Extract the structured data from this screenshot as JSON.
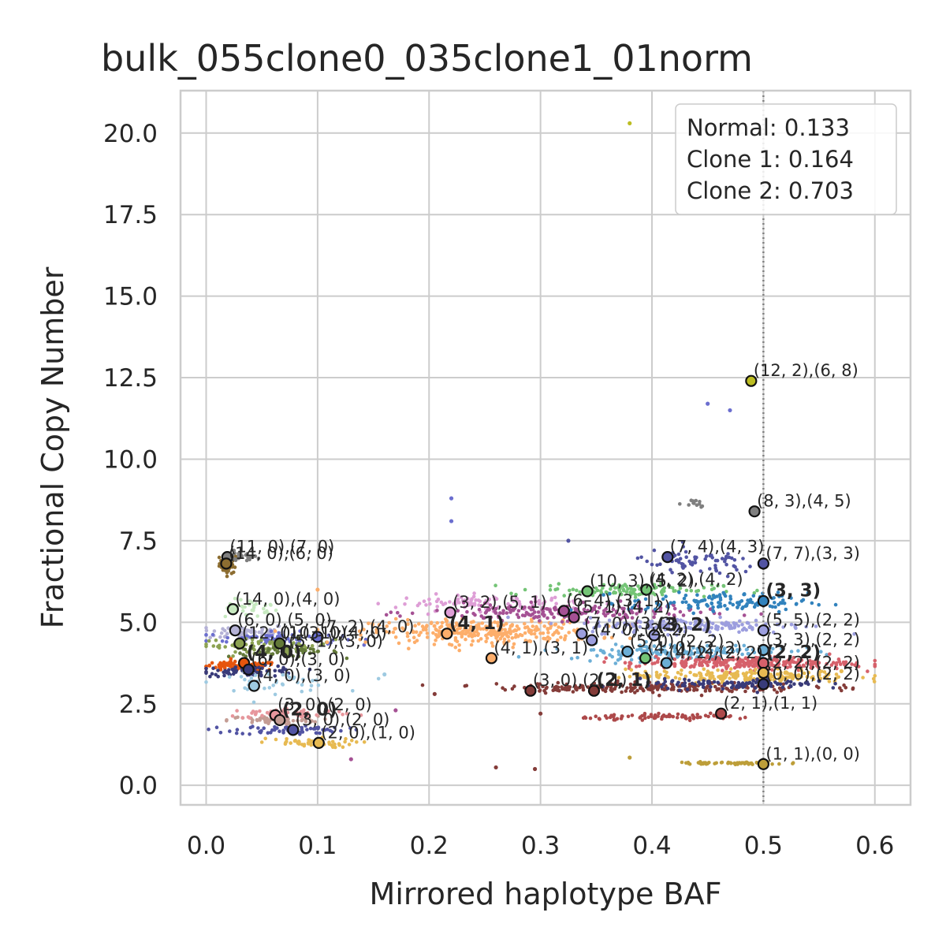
{
  "chart_data": {
    "type": "scatter",
    "title": "bulk_055clone0_035clone1_01norm",
    "xlabel": "Mirrored haplotype BAF",
    "ylabel": "Fractional Copy Number",
    "xlim": [
      -0.023,
      0.632
    ],
    "ylim": [
      -0.6,
      21.3
    ],
    "xticks": [
      0.0,
      0.1,
      0.2,
      0.3,
      0.4,
      0.5,
      0.6
    ],
    "xtick_labels": [
      "0.0",
      "0.1",
      "0.2",
      "0.3",
      "0.4",
      "0.5",
      "0.6"
    ],
    "yticks": [
      0.0,
      2.5,
      5.0,
      7.5,
      10.0,
      12.5,
      15.0,
      17.5,
      20.0
    ],
    "ytick_labels": [
      "0.0",
      "2.5",
      "5.0",
      "7.5",
      "10.0",
      "12.5",
      "15.0",
      "17.5",
      "20.0"
    ],
    "grid": true,
    "vline": {
      "x": 0.5,
      "style": "dotted",
      "color": "#808080"
    },
    "legend": {
      "placement": "top-right",
      "lines": [
        "Normal: 0.133",
        "Clone 1: 0.164",
        "Clone 2: 0.703"
      ]
    },
    "clusters": [
      {
        "color": "#8c6d31",
        "cx": 0.02,
        "cy": 6.8,
        "sx": 0.004,
        "sy": 0.15,
        "n": 60
      },
      {
        "color": "#7f7f7f",
        "cx": 0.03,
        "cy": 7.0,
        "sx": 0.008,
        "sy": 0.08,
        "n": 25
      },
      {
        "color": "#c7e9c0",
        "cx": 0.04,
        "cy": 5.4,
        "sx": 0.012,
        "sy": 0.15,
        "n": 30
      },
      {
        "color": "#b5b2d6",
        "cx": 0.035,
        "cy": 4.7,
        "sx": 0.02,
        "sy": 0.12,
        "n": 60
      },
      {
        "color": "#6b6ecf",
        "cx": 0.06,
        "cy": 4.5,
        "sx": 0.03,
        "sy": 0.1,
        "n": 60
      },
      {
        "color": "#8ca252",
        "cx": 0.055,
        "cy": 4.3,
        "sx": 0.03,
        "sy": 0.1,
        "n": 70
      },
      {
        "color": "#637939",
        "cx": 0.07,
        "cy": 4.1,
        "sx": 0.025,
        "sy": 0.08,
        "n": 50
      },
      {
        "color": "#e6550d",
        "cx": 0.03,
        "cy": 3.65,
        "sx": 0.018,
        "sy": 0.07,
        "n": 90
      },
      {
        "color": "#393b79",
        "cx": 0.04,
        "cy": 3.5,
        "sx": 0.022,
        "sy": 0.08,
        "n": 70
      },
      {
        "color": "#9ecae1",
        "cx": 0.06,
        "cy": 3.15,
        "sx": 0.03,
        "sy": 0.15,
        "n": 40
      },
      {
        "color": "#c49c94",
        "cx": 0.06,
        "cy": 2.0,
        "sx": 0.02,
        "sy": 0.06,
        "n": 60
      },
      {
        "color": "#e7969c",
        "cx": 0.075,
        "cy": 2.2,
        "sx": 0.03,
        "sy": 0.08,
        "n": 60
      },
      {
        "color": "#5254a3",
        "cx": 0.075,
        "cy": 1.7,
        "sx": 0.025,
        "sy": 0.07,
        "n": 70
      },
      {
        "color": "#e7ba52",
        "cx": 0.09,
        "cy": 1.3,
        "sx": 0.022,
        "sy": 0.07,
        "n": 50
      },
      {
        "color": "#fdae6b",
        "cx": 0.25,
        "cy": 4.7,
        "sx": 0.05,
        "sy": 0.18,
        "n": 320
      },
      {
        "color": "#de9ed6",
        "cx": 0.25,
        "cy": 5.6,
        "sx": 0.04,
        "sy": 0.12,
        "n": 90
      },
      {
        "color": "#a55194",
        "cx": 0.32,
        "cy": 5.3,
        "sx": 0.06,
        "sy": 0.12,
        "n": 200
      },
      {
        "color": "#74c476",
        "cx": 0.38,
        "cy": 6.0,
        "sx": 0.04,
        "sy": 0.1,
        "n": 120
      },
      {
        "color": "#3182bd",
        "cx": 0.46,
        "cy": 5.6,
        "sx": 0.04,
        "sy": 0.15,
        "n": 130
      },
      {
        "color": "#9c9ede",
        "cx": 0.44,
        "cy": 4.9,
        "sx": 0.05,
        "sy": 0.12,
        "n": 160
      },
      {
        "color": "#6baed6",
        "cx": 0.42,
        "cy": 4.1,
        "sx": 0.05,
        "sy": 0.12,
        "n": 170
      },
      {
        "color": "#d6616b",
        "cx": 0.48,
        "cy": 3.75,
        "sx": 0.05,
        "sy": 0.1,
        "n": 260
      },
      {
        "color": "#e7ba52",
        "cx": 0.48,
        "cy": 3.35,
        "sx": 0.05,
        "sy": 0.1,
        "n": 200
      },
      {
        "color": "#843c39",
        "cx": 0.4,
        "cy": 3.0,
        "sx": 0.07,
        "sy": 0.08,
        "n": 220
      },
      {
        "color": "#393b79",
        "cx": 0.47,
        "cy": 3.1,
        "sx": 0.04,
        "sy": 0.08,
        "n": 100
      },
      {
        "color": "#ad494a",
        "cx": 0.42,
        "cy": 2.1,
        "sx": 0.04,
        "sy": 0.04,
        "n": 80
      },
      {
        "color": "#5254a3",
        "cx": 0.44,
        "cy": 6.8,
        "sx": 0.03,
        "sy": 0.2,
        "n": 70
      },
      {
        "color": "#bd9e39",
        "cx": 0.47,
        "cy": 0.68,
        "sx": 0.025,
        "sy": 0.02,
        "n": 60
      },
      {
        "color": "#7f7f7f",
        "cx": 0.44,
        "cy": 8.65,
        "sx": 0.006,
        "sy": 0.08,
        "n": 12
      }
    ],
    "sparse_points": [
      {
        "x": 0.38,
        "y": 20.3,
        "color": "#bcbd22"
      },
      {
        "x": 0.22,
        "y": 8.8,
        "color": "#6b6ecf"
      },
      {
        "x": 0.22,
        "y": 8.1,
        "color": "#6b6ecf"
      },
      {
        "x": 0.45,
        "y": 11.7,
        "color": "#6b6ecf"
      },
      {
        "x": 0.47,
        "y": 11.5,
        "color": "#6b6ecf"
      },
      {
        "x": 0.325,
        "y": 7.5,
        "color": "#5254a3"
      },
      {
        "x": 0.1,
        "y": 6.0,
        "color": "#fdae6b"
      },
      {
        "x": 0.13,
        "y": 0.8,
        "color": "#a55194"
      },
      {
        "x": 0.26,
        "y": 0.55,
        "color": "#843c39"
      },
      {
        "x": 0.295,
        "y": 0.5,
        "color": "#843c39"
      },
      {
        "x": 0.38,
        "y": 0.85,
        "color": "#bd9e39"
      },
      {
        "x": 0.16,
        "y": 3.4,
        "color": "#9ecae1"
      },
      {
        "x": 0.205,
        "y": 2.8,
        "color": "#843c39"
      },
      {
        "x": 0.55,
        "y": 3.2,
        "color": "#393b79"
      },
      {
        "x": 0.57,
        "y": 3.5,
        "color": "#e7ba52"
      },
      {
        "x": 0.17,
        "y": 2.3,
        "color": "#a55194"
      },
      {
        "x": 0.3,
        "y": 2.2,
        "color": "#843c39"
      }
    ],
    "annotations": [
      {
        "x": 0.019,
        "y": 7.0,
        "text": "(11, 0),(7, 0)",
        "color": "#7f7f7f",
        "bold": false
      },
      {
        "x": 0.018,
        "y": 6.8,
        "text": "(14, 0),(6, 0)",
        "color": "#8c6d31",
        "bold": false
      },
      {
        "x": 0.024,
        "y": 5.4,
        "text": "(14, 0),(4, 0)",
        "color": "#c7e9c0",
        "bold": false
      },
      {
        "x": 0.026,
        "y": 4.75,
        "text": "(6, 0),(5, 0)",
        "color": "#b5b2d6",
        "bold": false
      },
      {
        "x": 0.1,
        "y": 4.55,
        "text": "(7, 2),(4, 0)",
        "color": "#6b6ecf",
        "bold": false
      },
      {
        "x": 0.03,
        "y": 4.35,
        "text": "(12, 0),(3, 0)",
        "color": "#8ca252",
        "bold": false
      },
      {
        "x": 0.066,
        "y": 4.35,
        "text": "(10, 1),(4, 0)",
        "color": "#637939",
        "bold": false
      },
      {
        "x": 0.072,
        "y": 4.1,
        "text": "(5, 1),(3, 0)",
        "color": "#8ca252",
        "bold": false
      },
      {
        "x": 0.034,
        "y": 3.75,
        "text": "(4, 0)",
        "color": "#e6550d",
        "bold": true
      },
      {
        "x": 0.038,
        "y": 3.55,
        "text": "(6, 0),(3, 0)",
        "color": "#393b79",
        "bold": false
      },
      {
        "x": 0.043,
        "y": 3.05,
        "text": "(4, 0),(3, 0)",
        "color": "#9ecae1",
        "bold": false
      },
      {
        "x": 0.062,
        "y": 2.15,
        "text": "(3, 0),(2, 0)",
        "color": "#e7969c",
        "bold": false
      },
      {
        "x": 0.066,
        "y": 2.0,
        "text": "(2, 0)",
        "color": "#c49c94",
        "bold": true
      },
      {
        "x": 0.078,
        "y": 1.7,
        "text": "(3, 0),(2, 0)",
        "color": "#5254a3",
        "bold": false
      },
      {
        "x": 0.101,
        "y": 1.3,
        "text": "(2, 0),(1, 0)",
        "color": "#e7ba52",
        "bold": false
      },
      {
        "x": 0.219,
        "y": 5.3,
        "text": "(3, 2),(5, 1)",
        "color": "#de9ed6",
        "bold": false
      },
      {
        "x": 0.216,
        "y": 4.65,
        "text": "(4, 1)",
        "color": "#fdae6b",
        "bold": true
      },
      {
        "x": 0.256,
        "y": 3.9,
        "text": "(4, 1),(3, 1)",
        "color": "#fdae6b",
        "bold": false
      },
      {
        "x": 0.291,
        "y": 2.9,
        "text": "(3, 0),(2, 1)",
        "color": "#843c39",
        "bold": false
      },
      {
        "x": 0.348,
        "y": 2.9,
        "text": "(2, 1)",
        "color": "#843c39",
        "bold": true
      },
      {
        "x": 0.321,
        "y": 5.35,
        "text": "(6, 4),(3, 1)",
        "color": "#a55194",
        "bold": false
      },
      {
        "x": 0.33,
        "y": 5.15,
        "text": "(5, 1),(4, 2)",
        "color": "#a55194",
        "bold": false
      },
      {
        "x": 0.342,
        "y": 5.95,
        "text": "(10, 3),(5, 2)",
        "color": "#74c476",
        "bold": false
      },
      {
        "x": 0.337,
        "y": 4.65,
        "text": "(7, 0),(3, 2)",
        "color": "#9c9ede",
        "bold": false
      },
      {
        "x": 0.346,
        "y": 4.45,
        "text": "(4, 0),(2, 2)",
        "color": "#9c9ede",
        "bold": false
      },
      {
        "x": 0.378,
        "y": 4.1,
        "text": "(5, 0),(2, 2)",
        "color": "#6baed6",
        "bold": false
      },
      {
        "x": 0.395,
        "y": 6.0,
        "text": "(4, 2),(4, 2)",
        "color": "#74c476",
        "bold": false
      },
      {
        "x": 0.394,
        "y": 3.9,
        "text": "(4, 0),(2, 2)",
        "color": "#74c476",
        "bold": false
      },
      {
        "x": 0.402,
        "y": 4.6,
        "text": "(3, 2)",
        "color": "#9c9ede",
        "bold": true
      },
      {
        "x": 0.413,
        "y": 3.75,
        "text": "(4, 2),(2, 2)",
        "color": "#6baed6",
        "bold": false
      },
      {
        "x": 0.414,
        "y": 7.0,
        "text": "(7, 4),(4, 3)",
        "color": "#5254a3",
        "bold": false
      },
      {
        "x": 0.5,
        "y": 6.8,
        "text": "(7, 7),(3, 3)",
        "color": "#5254a3",
        "bold": false
      },
      {
        "x": 0.5,
        "y": 5.65,
        "text": "(3, 3)",
        "color": "#3182bd",
        "bold": true
      },
      {
        "x": 0.5,
        "y": 4.75,
        "text": "(5, 5),(2, 2)",
        "color": "#9c9ede",
        "bold": false
      },
      {
        "x": 0.5,
        "y": 4.15,
        "text": "(3, 3),(2, 2)",
        "color": "#6baed6",
        "bold": false
      },
      {
        "x": 0.5,
        "y": 3.75,
        "text": "(2, 2)",
        "color": "#d6616b",
        "bold": true
      },
      {
        "x": 0.5,
        "y": 3.45,
        "text": "(2, 2),(2, 2)",
        "color": "#e7ba52",
        "bold": false
      },
      {
        "x": 0.5,
        "y": 3.1,
        "text": "(0, 0),(2, 2)",
        "color": "#393b79",
        "bold": false
      },
      {
        "x": 0.462,
        "y": 2.2,
        "text": "(2, 1),(1, 1)",
        "color": "#ad494a",
        "bold": false
      },
      {
        "x": 0.5,
        "y": 0.65,
        "text": "(1, 1),(0, 0)",
        "color": "#bd9e39",
        "bold": false
      },
      {
        "x": 0.492,
        "y": 8.4,
        "text": "(8, 3),(4, 5)",
        "color": "#7f7f7f",
        "bold": false
      },
      {
        "x": 0.489,
        "y": 12.4,
        "text": "(12, 2),(6, 8)",
        "color": "#bcbd22",
        "bold": false
      }
    ]
  }
}
